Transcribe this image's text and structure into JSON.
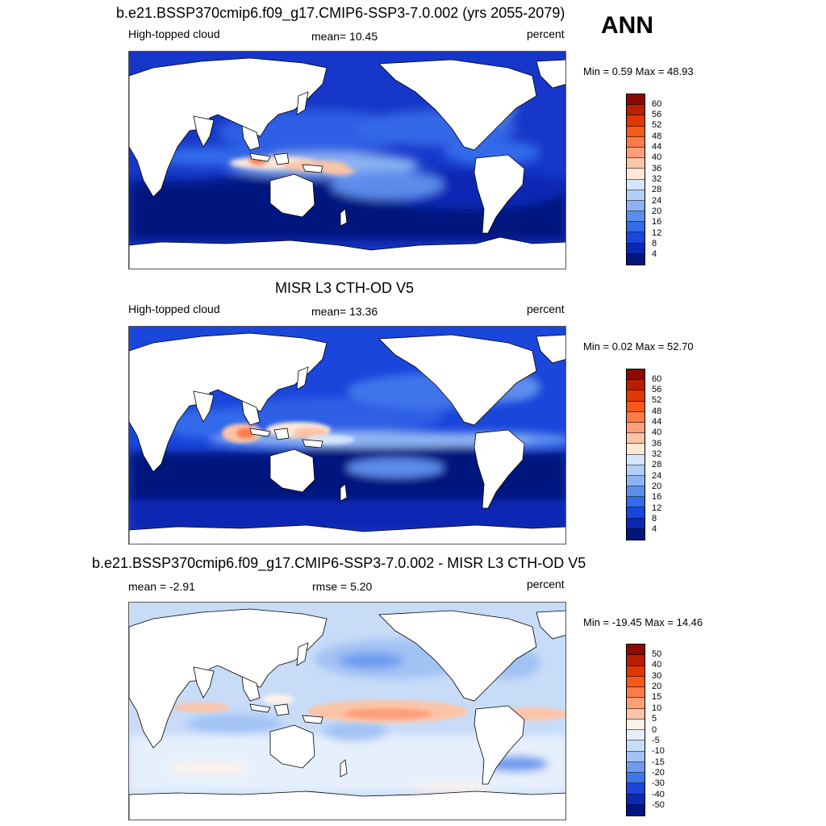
{
  "season": "ANN",
  "panels": [
    {
      "title": "b.e21.BSSP370cmip6.f09_g17.CMIP6-SSP3-7.0.002 (yrs 2055-2079)",
      "left_label": "High-topped cloud",
      "center_label": "mean=  10.45",
      "right_label": "percent",
      "minmax": "Min =   0.59 Max =  48.93",
      "colorbar_labels": [
        "60",
        "56",
        "52",
        "48",
        "44",
        "40",
        "36",
        "32",
        "28",
        "24",
        "20",
        "16",
        "12",
        "8",
        "4"
      ],
      "colors": [
        "#8c0a00",
        "#b81e00",
        "#de3800",
        "#f55a18",
        "#fb7b48",
        "#fca07a",
        "#fcc4a6",
        "#fde8d8",
        "#d6e6fa",
        "#b3cff7",
        "#8cb3f2",
        "#5b8ded",
        "#336bea",
        "#1a46dc",
        "#0a28b4",
        "#02157f"
      ]
    },
    {
      "title": "MISR L3 CTH-OD V5",
      "left_label": "High-topped cloud",
      "center_label": "mean=  13.36",
      "right_label": "percent",
      "minmax": "Min =   0.02 Max =  52.70",
      "colorbar_labels": [
        "60",
        "56",
        "52",
        "48",
        "44",
        "40",
        "36",
        "32",
        "28",
        "24",
        "20",
        "16",
        "12",
        "8",
        "4"
      ],
      "colors": [
        "#8c0a00",
        "#b81e00",
        "#de3800",
        "#f55a18",
        "#fb7b48",
        "#fca07a",
        "#fcc4a6",
        "#fde8d8",
        "#d6e6fa",
        "#b3cff7",
        "#8cb3f2",
        "#5b8ded",
        "#336bea",
        "#1a46dc",
        "#0a28b4",
        "#02157f"
      ]
    },
    {
      "title": "b.e21.BSSP370cmip6.f09_g17.CMIP6-SSP3-7.0.002 - MISR L3 CTH-OD V5",
      "left_label": "mean =  -2.91",
      "center_label": "rmse =   5.20",
      "right_label": "percent",
      "minmax": "Min = -19.45 Max =  14.46",
      "colorbar_labels": [
        "50",
        "40",
        "30",
        "20",
        "15",
        "10",
        "5",
        "0",
        "-5",
        "-10",
        "-15",
        "-20",
        "-30",
        "-40",
        "-50"
      ],
      "colors": [
        "#8c0a00",
        "#b81e00",
        "#de3800",
        "#f55a18",
        "#fb7b48",
        "#fca07a",
        "#fcc4a6",
        "#fdf2ea",
        "#e6f0fc",
        "#c8dcf8",
        "#a2c2f4",
        "#6e9bef",
        "#3f75ea",
        "#1a46dc",
        "#0a28b4",
        "#02157f"
      ]
    }
  ]
}
